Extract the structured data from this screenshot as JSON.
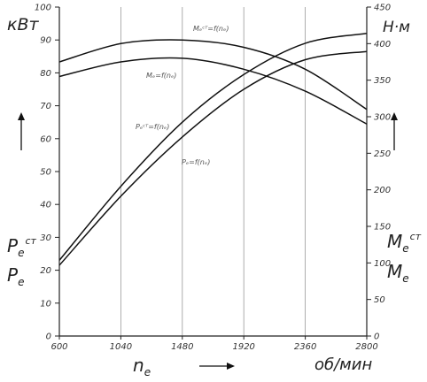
{
  "chart_data": {
    "type": "line",
    "x": [
      600,
      1040,
      1480,
      1920,
      2360,
      2800
    ],
    "xlim": [
      600,
      2800
    ],
    "ylim_left": [
      0,
      100
    ],
    "ylim_right": [
      0,
      450
    ],
    "xticks": [
      "600",
      "1040",
      "1480",
      "1920",
      "2360",
      "2800"
    ],
    "yticks_left": [
      "0",
      "10",
      "20",
      "30",
      "40",
      "50",
      "60",
      "70",
      "80",
      "90",
      "100"
    ],
    "yticks_right": [
      "0",
      "50",
      "100",
      "150",
      "200",
      "250",
      "300",
      "350",
      "400",
      "450"
    ],
    "xlabel": "n",
    "xlabel_sub": "e",
    "xunit": "об/мин",
    "ylabel_left_unit": "кВт",
    "ylabel_right_unit": "Н·м",
    "grid": "vertical",
    "series": [
      {
        "name": "Pe^ст",
        "axis": "left",
        "values": [
          23,
          45.5,
          65,
          79.5,
          89,
          92
        ]
      },
      {
        "name": "Pe",
        "axis": "left",
        "values": [
          21.5,
          42.5,
          60.5,
          75,
          84,
          86.5
        ]
      },
      {
        "name": "Me^ст",
        "axis": "right",
        "values": [
          375,
          400,
          405,
          395,
          365,
          310
        ]
      },
      {
        "name": "Me",
        "axis": "right",
        "values": [
          355,
          375,
          380,
          365,
          335,
          290
        ]
      }
    ],
    "annotations": [
      {
        "text": "Mₑᶜᵀ=f(nₑ)",
        "series": "Me^ст"
      },
      {
        "text": "Mₑ=f(nₑ)",
        "series": "Me"
      },
      {
        "text": "Pₑᶜᵀ=f(nₑ)",
        "series": "Pe^ст"
      },
      {
        "text": "Pₑ=f(nₑ)",
        "series": "Pe"
      }
    ],
    "left_legend": [
      {
        "base": "P",
        "sub": "e",
        "sup": "ст"
      },
      {
        "base": "P",
        "sub": "e",
        "sup": ""
      }
    ],
    "right_legend": [
      {
        "base": "M",
        "sub": "e",
        "sup": "ст"
      },
      {
        "base": "M",
        "sub": "e",
        "sup": ""
      }
    ]
  }
}
